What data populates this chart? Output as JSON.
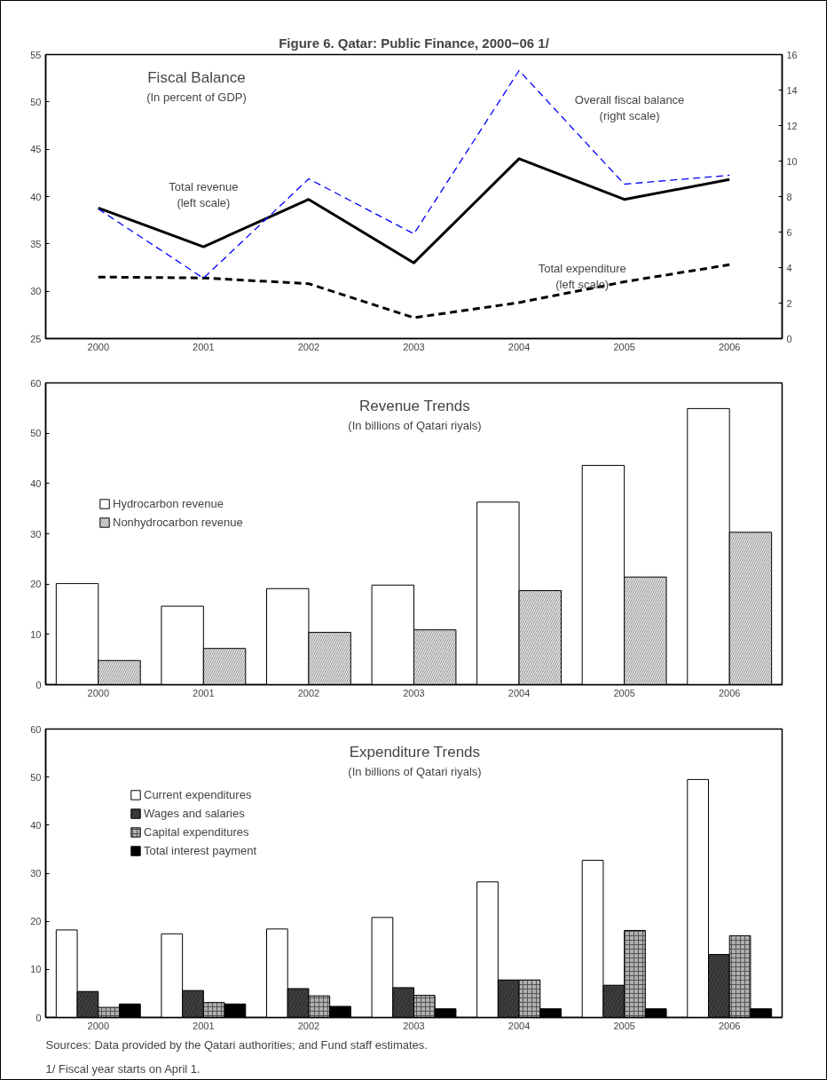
{
  "chart_data": [
    {
      "type": "line",
      "title": "Fiscal Balance",
      "subtitle": "(In percent of GDP)",
      "annotations": [
        "Figure 6. Qatar: Public Finance, 2000−06 1/"
      ],
      "categories": [
        "2000",
        "2001",
        "2002",
        "2003",
        "2004",
        "2005",
        "2006"
      ],
      "series": [
        {
          "name": "Total revenue\n(left scale)",
          "color": "#000000",
          "line_style": "solid",
          "values": [
            38.8,
            34.7,
            39.7,
            33.0,
            44.0,
            39.7,
            41.8
          ]
        },
        {
          "name": "Total expenditure\n(left scale)",
          "color": "#000000",
          "line_style": "dashed",
          "values": [
            31.5,
            31.4,
            30.8,
            27.2,
            28.8,
            31.0,
            32.8
          ]
        },
        {
          "name": "Overall fiscal balance\n(right scale)",
          "color": "#0000ff",
          "line_style": "dashed",
          "axis": "y2",
          "values": [
            7.3,
            3.4,
            9.0,
            5.9,
            15.1,
            8.7,
            9.2
          ]
        }
      ],
      "ylim": [
        25,
        55
      ],
      "yticks": [
        25,
        30,
        35,
        40,
        45,
        50,
        55
      ],
      "y2lim": [
        0,
        16
      ],
      "y2ticks": [
        0,
        2,
        4,
        6,
        8,
        10,
        12,
        14,
        16
      ],
      "grid": false,
      "legend": false,
      "marker": "none"
    },
    {
      "type": "bar",
      "title": "Revenue Trends",
      "subtitle": "(In billions of Qatari riyals)",
      "categories": [
        "2000",
        "2001",
        "2002",
        "2003",
        "2004",
        "2005",
        "2006"
      ],
      "series": [
        {
          "name": "Hydrocarbon revenue",
          "color": "#ffffff",
          "values": [
            20.1,
            15.6,
            19.1,
            19.8,
            36.3,
            43.6,
            54.9
          ]
        },
        {
          "name": "Nonhydrocarbon revenue",
          "color": "#a0a0a0",
          "values": [
            4.8,
            7.2,
            10.4,
            10.9,
            18.7,
            21.4,
            30.3
          ]
        }
      ],
      "ylim": [
        0,
        60
      ],
      "yticks": [
        0,
        10,
        20,
        30,
        40,
        50,
        60
      ],
      "grid": false,
      "legend": "top left"
    },
    {
      "type": "bar",
      "title": "Expenditure Trends",
      "subtitle": "(In billions of Qatari riyals)",
      "categories": [
        "2000",
        "2001",
        "2002",
        "2003",
        "2004",
        "2005",
        "2006"
      ],
      "series": [
        {
          "name": "Current expenditures",
          "color": "#ffffff",
          "values": [
            18.2,
            17.4,
            18.4,
            20.8,
            28.2,
            32.7,
            49.5
          ]
        },
        {
          "name": "Wages and salaries",
          "color": "#505050",
          "values": [
            5.4,
            5.6,
            6.0,
            6.2,
            7.8,
            6.7,
            13.1
          ]
        },
        {
          "name": "Capital expenditures",
          "color": "#b0b0b0",
          "values": [
            2.1,
            3.1,
            4.5,
            4.6,
            7.8,
            18.1,
            17.0
          ]
        },
        {
          "name": "Total interest payment",
          "color": "#000000",
          "values": [
            2.8,
            2.8,
            2.3,
            1.8,
            1.8,
            1.8,
            1.8
          ]
        }
      ],
      "ylim": [
        0,
        60
      ],
      "yticks": [
        0,
        10,
        20,
        30,
        40,
        50,
        60
      ],
      "grid": false,
      "legend": "top left",
      "annotations": [
        "Sources:  Data provided by the Qatari authorities; and Fund staff estimates.",
        "1/  Fiscal year starts on April 1."
      ]
    }
  ]
}
